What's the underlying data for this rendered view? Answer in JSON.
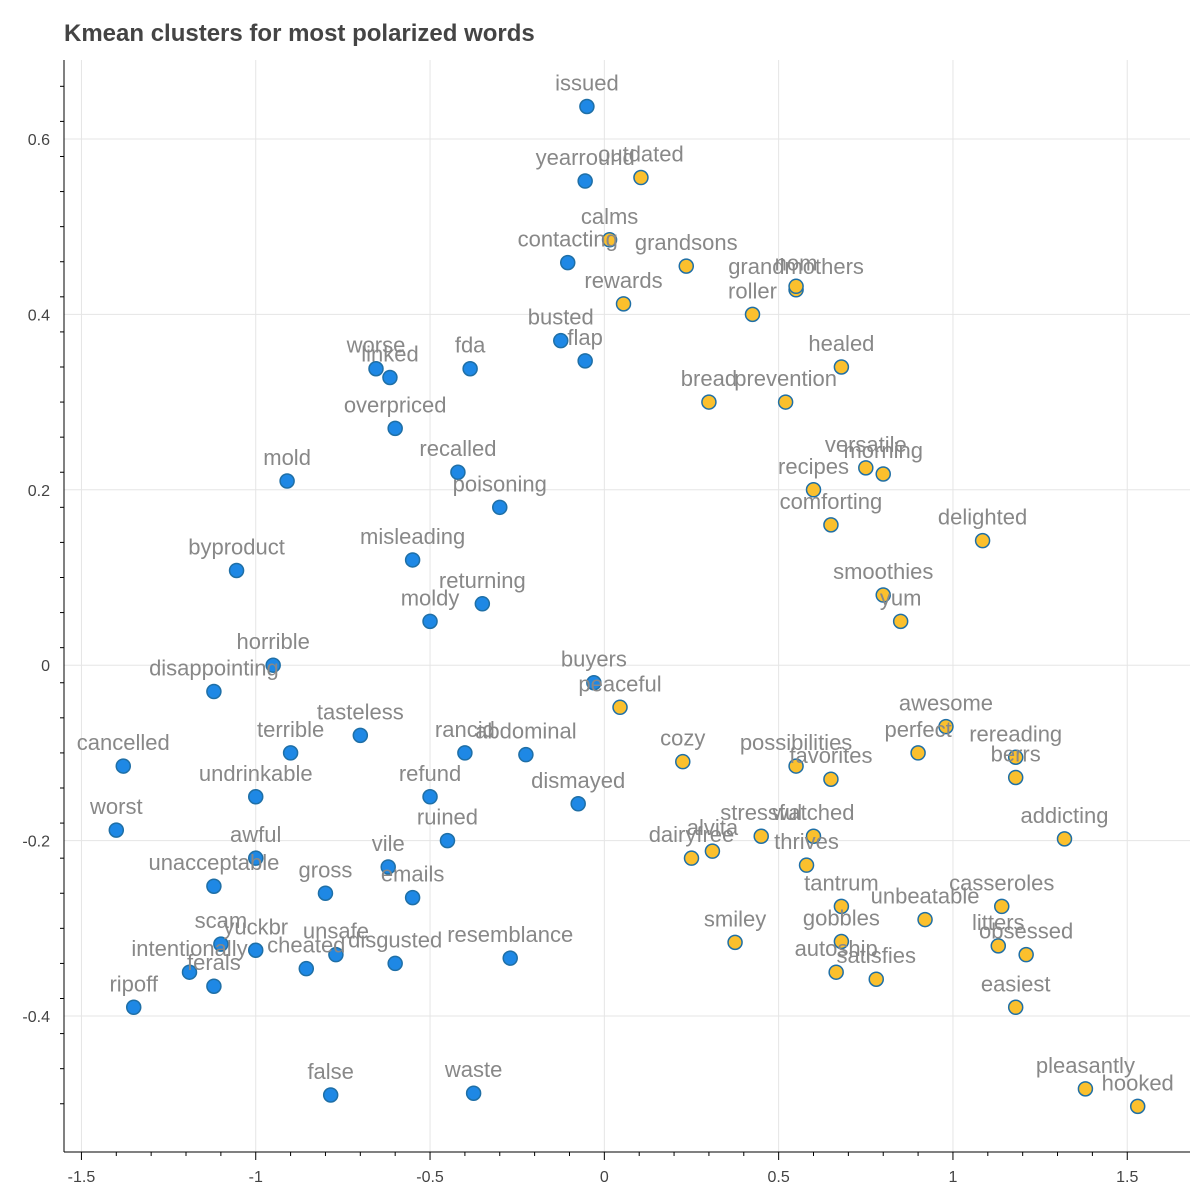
{
  "chart_data": {
    "type": "scatter",
    "title": "Kmean clusters for most polarized words",
    "xlabel": "",
    "ylabel": "",
    "xlim": [
      -1.55,
      1.68
    ],
    "ylim": [
      -0.555,
      0.69
    ],
    "x_ticks": [
      -1.5,
      -1,
      -0.5,
      0,
      0.5,
      1,
      1.5
    ],
    "x_tick_labels": [
      "-1.5",
      "-1",
      "-0.5",
      "0",
      "0.5",
      "1",
      "1.5"
    ],
    "y_ticks": [
      -0.4,
      -0.2,
      0,
      0.2,
      0.4,
      0.6
    ],
    "y_tick_labels": [
      "-0.4",
      "-0.2",
      "0",
      "0.2",
      "0.4",
      "0.6"
    ],
    "grid": true,
    "legend": "none",
    "colors": {
      "cluster_0": "#1e88e5",
      "cluster_1": "#fbc02d",
      "outline": "#1f6fa6",
      "label": "#888888"
    },
    "series": [
      {
        "cluster": 0,
        "color": "#1e88e5",
        "points": [
          {
            "word": "issued",
            "x": -0.05,
            "y": 0.637
          },
          {
            "word": "yearround",
            "x": -0.055,
            "y": 0.552
          },
          {
            "word": "contacting",
            "x": -0.105,
            "y": 0.459
          },
          {
            "word": "busted",
            "x": -0.125,
            "y": 0.37
          },
          {
            "word": "flap",
            "x": -0.055,
            "y": 0.347
          },
          {
            "word": "worse",
            "x": -0.655,
            "y": 0.338
          },
          {
            "word": "linked",
            "x": -0.615,
            "y": 0.328
          },
          {
            "word": "fda",
            "x": -0.385,
            "y": 0.338
          },
          {
            "word": "mold",
            "x": -0.91,
            "y": 0.21
          },
          {
            "word": "byproduct",
            "x": -1.055,
            "y": 0.108
          },
          {
            "word": "disappointing",
            "x": -1.12,
            "y": -0.03
          },
          {
            "word": "cancelled",
            "x": -1.38,
            "y": -0.115
          },
          {
            "word": "worst",
            "x": -1.4,
            "y": -0.188
          },
          {
            "word": "unacceptable",
            "x": -1.12,
            "y": -0.252
          },
          {
            "word": "scam",
            "x": -1.1,
            "y": -0.318
          },
          {
            "word": "yuckbr",
            "x": -1.0,
            "y": -0.325
          },
          {
            "word": "intentionally",
            "x": -1.19,
            "y": -0.35
          },
          {
            "word": "ferals",
            "x": -1.12,
            "y": -0.366
          },
          {
            "word": "ripoff",
            "x": -1.35,
            "y": -0.39
          },
          {
            "word": "cheated",
            "x": -0.855,
            "y": -0.346
          },
          {
            "word": "unsafe",
            "x": -0.77,
            "y": -0.33
          },
          {
            "word": "disgusted",
            "x": -0.6,
            "y": -0.34
          },
          {
            "word": "resemblance",
            "x": -0.27,
            "y": -0.334
          },
          {
            "word": "false",
            "x": -0.785,
            "y": -0.49
          },
          {
            "word": "waste",
            "x": -0.375,
            "y": -0.488
          },
          {
            "word": "dismayed",
            "x": -0.075,
            "y": -0.158
          },
          {
            "word": "abdominal",
            "x": -0.225,
            "y": -0.102
          },
          {
            "word": "buyers",
            "x": -0.03,
            "y": -0.02
          },
          {
            "word": "overpriced",
            "x": -0.6,
            "y": 0.27
          },
          {
            "word": "recalled",
            "x": -0.42,
            "y": 0.22
          },
          {
            "word": "misleading",
            "x": -0.55,
            "y": 0.12
          },
          {
            "word": "horrible",
            "x": -0.95,
            "y": 0.0
          },
          {
            "word": "tasteless",
            "x": -0.7,
            "y": -0.08
          },
          {
            "word": "moldy",
            "x": -0.5,
            "y": 0.05
          },
          {
            "word": "refund",
            "x": -0.5,
            "y": -0.15
          },
          {
            "word": "terrible",
            "x": -0.9,
            "y": -0.1
          },
          {
            "word": "undrinkable",
            "x": -1.0,
            "y": -0.15
          },
          {
            "word": "gross",
            "x": -0.8,
            "y": -0.26
          },
          {
            "word": "awful",
            "x": -1.0,
            "y": -0.22
          },
          {
            "word": "vile",
            "x": -0.62,
            "y": -0.23
          },
          {
            "word": "emails",
            "x": -0.55,
            "y": -0.265
          },
          {
            "word": "ruined",
            "x": -0.45,
            "y": -0.2
          },
          {
            "word": "rancid",
            "x": -0.4,
            "y": -0.1
          },
          {
            "word": "poisoning",
            "x": -0.3,
            "y": 0.18
          },
          {
            "word": "returning",
            "x": -0.35,
            "y": 0.07
          }
        ]
      },
      {
        "cluster": 1,
        "color": "#fbc02d",
        "points": [
          {
            "word": "outdated",
            "x": 0.105,
            "y": 0.556
          },
          {
            "word": "calms",
            "x": 0.015,
            "y": 0.485
          },
          {
            "word": "grandsons",
            "x": 0.235,
            "y": 0.455
          },
          {
            "word": "rewards",
            "x": 0.055,
            "y": 0.412
          },
          {
            "word": "grandmothers",
            "x": 0.55,
            "y": 0.428
          },
          {
            "word": "nom",
            "x": 0.55,
            "y": 0.432
          },
          {
            "word": "roller",
            "x": 0.425,
            "y": 0.4
          },
          {
            "word": "healed",
            "x": 0.68,
            "y": 0.34
          },
          {
            "word": "prevention",
            "x": 0.52,
            "y": 0.3
          },
          {
            "word": "versatile",
            "x": 0.75,
            "y": 0.225
          },
          {
            "word": "morning",
            "x": 0.8,
            "y": 0.218
          },
          {
            "word": "delighted",
            "x": 1.085,
            "y": 0.142
          },
          {
            "word": "comforting",
            "x": 0.65,
            "y": 0.16
          },
          {
            "word": "peaceful",
            "x": 0.045,
            "y": -0.048
          },
          {
            "word": "cozy",
            "x": 0.225,
            "y": -0.11
          },
          {
            "word": "awesome",
            "x": 0.98,
            "y": -0.07
          },
          {
            "word": "rereading",
            "x": 1.18,
            "y": -0.105
          },
          {
            "word": "berrs",
            "x": 1.18,
            "y": -0.128
          },
          {
            "word": "addicting",
            "x": 1.32,
            "y": -0.198
          },
          {
            "word": "smiley",
            "x": 0.375,
            "y": -0.316
          },
          {
            "word": "gobbles",
            "x": 0.68,
            "y": -0.315
          },
          {
            "word": "autoship",
            "x": 0.665,
            "y": -0.35
          },
          {
            "word": "satisfies",
            "x": 0.78,
            "y": -0.358
          },
          {
            "word": "casseroles",
            "x": 1.14,
            "y": -0.275
          },
          {
            "word": "litters",
            "x": 1.13,
            "y": -0.32
          },
          {
            "word": "obsessed",
            "x": 1.21,
            "y": -0.33
          },
          {
            "word": "easiest",
            "x": 1.18,
            "y": -0.39
          },
          {
            "word": "pleasantly",
            "x": 1.38,
            "y": -0.483
          },
          {
            "word": "hooked",
            "x": 1.53,
            "y": -0.503
          },
          {
            "word": "dairyfree",
            "x": 0.25,
            "y": -0.22
          },
          {
            "word": "alvita",
            "x": 0.31,
            "y": -0.212
          },
          {
            "word": "stressful",
            "x": 0.45,
            "y": -0.195
          },
          {
            "word": "watched",
            "x": 0.6,
            "y": -0.195
          },
          {
            "word": "thrives",
            "x": 0.58,
            "y": -0.228
          },
          {
            "word": "tantrum",
            "x": 0.68,
            "y": -0.275
          },
          {
            "word": "unbeatable",
            "x": 0.92,
            "y": -0.29
          },
          {
            "word": "possibilities",
            "x": 0.55,
            "y": -0.115
          },
          {
            "word": "favorites",
            "x": 0.65,
            "y": -0.13
          },
          {
            "word": "yum",
            "x": 0.85,
            "y": 0.05
          },
          {
            "word": "smoothies",
            "x": 0.8,
            "y": 0.08
          },
          {
            "word": "bread",
            "x": 0.3,
            "y": 0.3
          },
          {
            "word": "recipes",
            "x": 0.6,
            "y": 0.2
          },
          {
            "word": "perfect",
            "x": 0.9,
            "y": -0.1
          }
        ]
      }
    ]
  }
}
